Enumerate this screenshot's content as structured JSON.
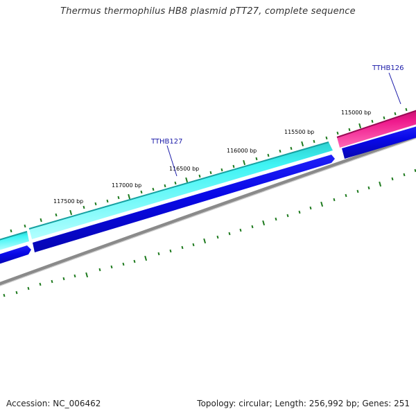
{
  "title": "Thermus thermophilus HB8 plasmid pTT27, complete sequence",
  "footer": {
    "accession": "Accession: NC_006462",
    "topology": "Topology: circular; Length: 256,992 bp; Genes: 251"
  },
  "colors": {
    "tick_green": "#1e7a1e",
    "gene_cyan": "#33e8e8",
    "gene_pink": "#e0147f",
    "gene_blue": "#0a0ae0",
    "backbone_gray": "#8a8a8a",
    "label_line": "#1a1aa8"
  },
  "bp_labels": [
    "115000 bp",
    "115500 bp",
    "116000 bp",
    "116500 bp",
    "117000 bp",
    "117500 bp"
  ],
  "gene_labels": [
    "TTHB126",
    "TTHB127"
  ]
}
